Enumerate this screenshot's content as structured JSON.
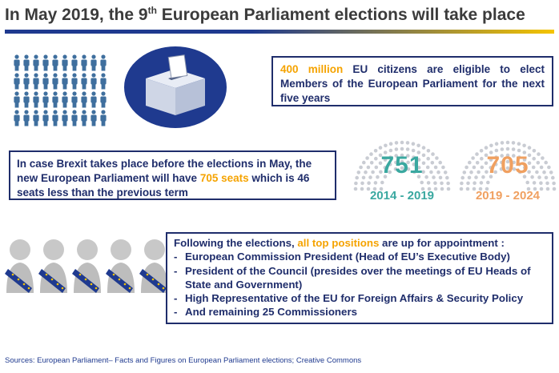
{
  "title": {
    "pre": "In May 2019, the 9",
    "sup": "th",
    "post": " European Parliament elections will take place"
  },
  "colors": {
    "navy": "#1f2d6b",
    "accent": "#f5a300",
    "teal": "#3aa8a0",
    "orange": "#f0a060",
    "people": "#3f6f9e"
  },
  "icons": {
    "people_grid": "people-grid-icon",
    "ballot_box": "ballot-box-icon",
    "official": "official-with-sash-icon"
  },
  "citizens_box": {
    "highlight": "400 million",
    "text": " EU citizens are eligible to elect Members of the European Parliament for the next five years"
  },
  "brexit_box": {
    "text_pre": "In case Brexit takes place before the elections in May, the new European Parliament will have ",
    "highlight": "705 seats",
    "text_post": " which is 46 seats less than the previous term"
  },
  "hemicycles": [
    {
      "seats": "751",
      "years": "2014 - 2019"
    },
    {
      "seats": "705",
      "years": "2019 - 2024"
    }
  ],
  "positions_box": {
    "intro_pre": "Following the elections, ",
    "intro_highlight": "all top positions",
    "intro_post": " are up for appointment :",
    "items": [
      "European Commission President (Head of EU’s Executive Body)",
      "President of the Council (presides over the meetings of EU Heads of State and Government)",
      "High Representative of the EU for Foreign Affairs & Security Policy",
      "And remaining 25 Commissioners"
    ]
  },
  "source": "Sources: European Parliament– Facts and Figures on European Parliament elections; Creative Commons"
}
